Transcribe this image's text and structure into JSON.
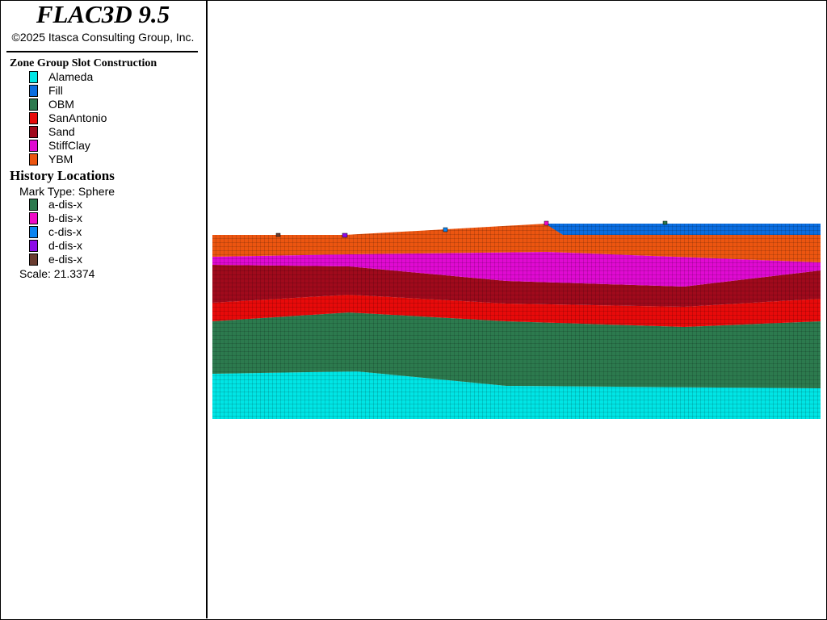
{
  "app": {
    "title": "FLAC3D 9.5",
    "copyright": "©2025 Itasca Consulting Group, Inc."
  },
  "zone_group": {
    "title": "Zone Group Slot Construction",
    "items": [
      {
        "label": "Alameda",
        "color": "#00e5e5"
      },
      {
        "label": "Fill",
        "color": "#0a6de0"
      },
      {
        "label": "OBM",
        "color": "#2c7a4e"
      },
      {
        "label": "SanAntonio",
        "color": "#e80a0a"
      },
      {
        "label": "Sand",
        "color": "#a00a1c"
      },
      {
        "label": "StiffClay",
        "color": "#e00ad2"
      },
      {
        "label": "YBM",
        "color": "#ec5510"
      }
    ]
  },
  "history": {
    "title": "History Locations",
    "mark_type": "Mark Type: Sphere",
    "scale": "Scale: 21.3374",
    "items": [
      {
        "label": "a-dis-x",
        "color": "#2c7a4e"
      },
      {
        "label": "b-dis-x",
        "color": "#f00ac6"
      },
      {
        "label": "c-dis-x",
        "color": "#0a84f0"
      },
      {
        "label": "d-dis-x",
        "color": "#8c0ae8"
      },
      {
        "label": "e-dis-x",
        "color": "#6a3c30"
      }
    ]
  },
  "mesh_colors": {
    "grid_line": "#000000"
  }
}
